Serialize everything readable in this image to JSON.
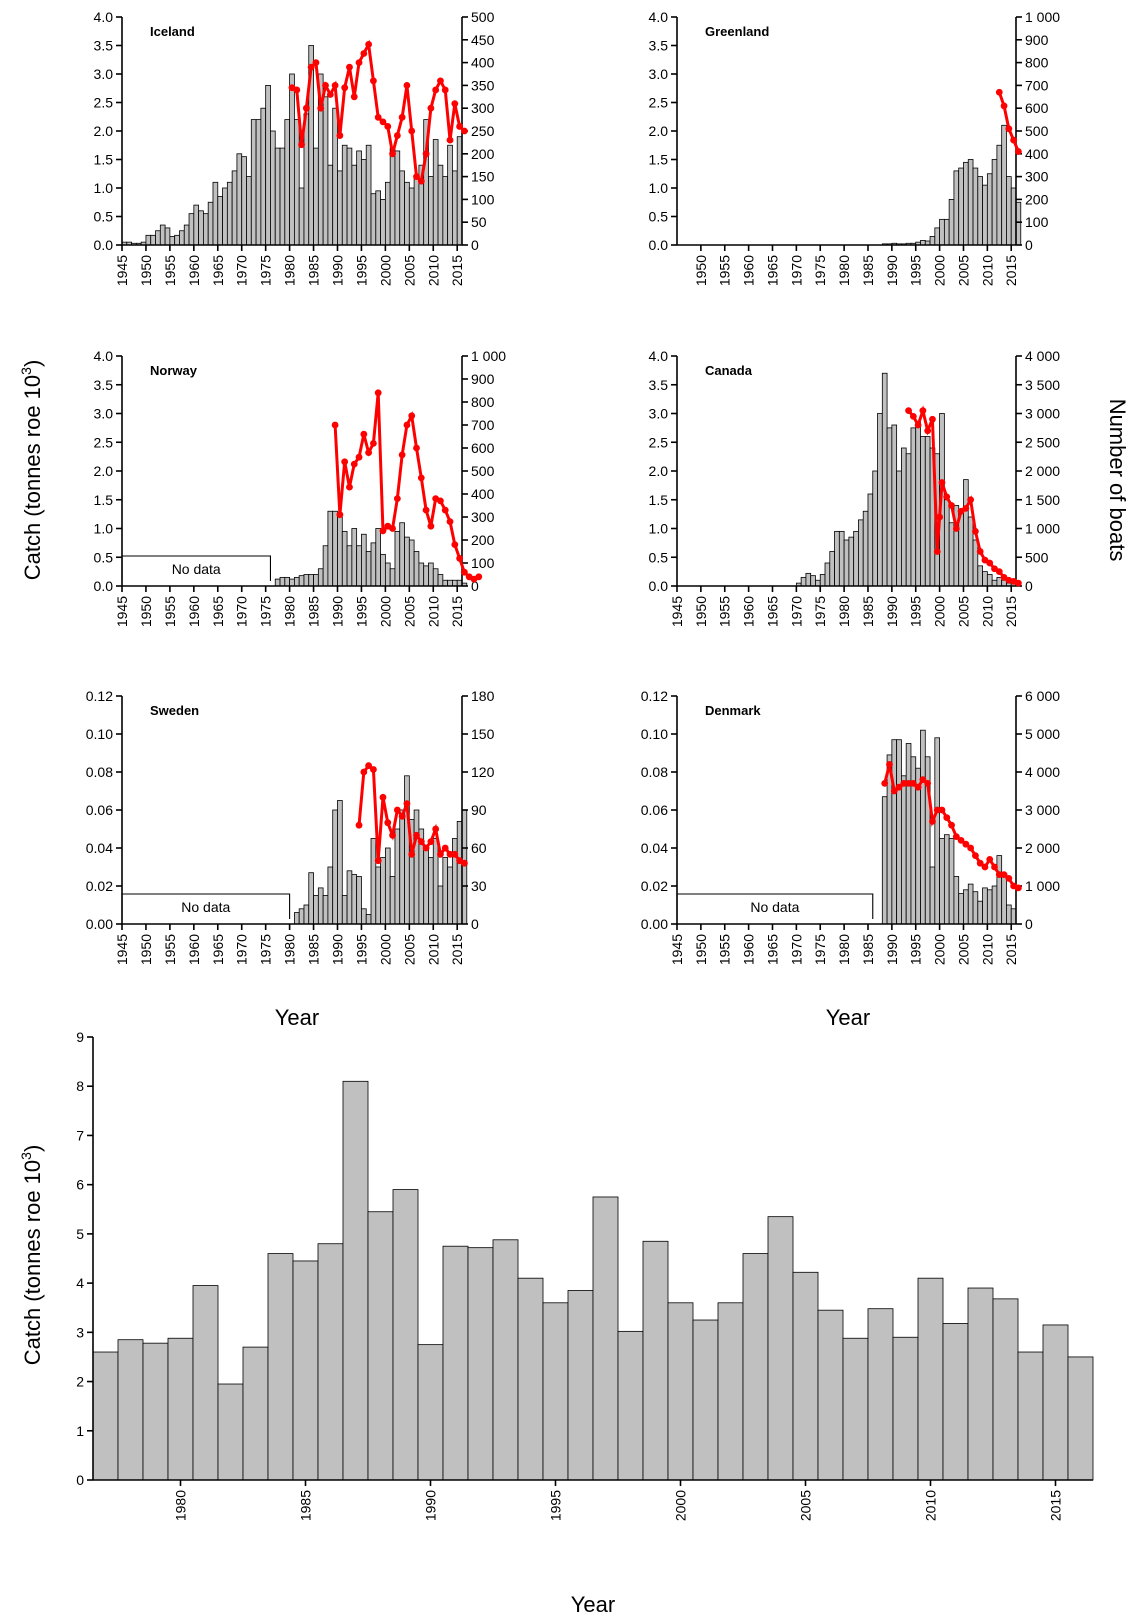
{
  "labels": {
    "catch_axis_title": "Catch (tonnes roe 10",
    "catch_axis_sup": "3",
    "catch_axis_close": ")",
    "boats_axis_title": "Number of boats",
    "year_title": "Year",
    "no_data": "No data"
  },
  "colors": {
    "bar_fill": "#c0c0c0",
    "bar_stroke": "#000000",
    "boats_line": "#ff0000"
  },
  "chart_data": [
    {
      "type": "bar+line",
      "panel": "Iceland",
      "title": "Iceland",
      "xlim": [
        1945,
        2016
      ],
      "xticks": [
        "1945",
        "1950",
        "1955",
        "1960",
        "1965",
        "1970",
        "1975",
        "1980",
        "1985",
        "1990",
        "1995",
        "2000",
        "2005",
        "2010",
        "2015"
      ],
      "ylim": [
        0,
        4.0
      ],
      "yticks": [
        "0.0",
        "0.5",
        "1.0",
        "1.5",
        "2.0",
        "2.5",
        "3.0",
        "3.5",
        "4.0"
      ],
      "y2lim": [
        0,
        500
      ],
      "y2ticks": [
        "0",
        "50",
        "100",
        "150",
        "200",
        "250",
        "300",
        "350",
        "400",
        "450",
        "500"
      ],
      "catch_start_year": 1945,
      "catch": [
        0.05,
        0.05,
        0.03,
        0.03,
        0.05,
        0.17,
        0.17,
        0.25,
        0.35,
        0.3,
        0.15,
        0.17,
        0.25,
        0.35,
        0.55,
        0.7,
        0.6,
        0.55,
        0.75,
        1.1,
        0.85,
        1.0,
        1.1,
        1.3,
        1.6,
        1.55,
        1.2,
        2.2,
        2.2,
        2.4,
        2.8,
        2.0,
        1.7,
        1.7,
        2.2,
        3.0,
        2.2,
        1.0,
        2.3,
        3.5,
        1.7,
        3.0,
        2.6,
        1.4,
        2.4,
        1.3,
        1.75,
        1.7,
        1.4,
        1.65,
        1.5,
        1.75,
        0.9,
        0.95,
        0.8,
        1.1,
        1.7,
        1.65,
        1.3,
        1.1,
        1.0,
        1.2,
        1.4,
        2.2,
        1.2,
        1.85,
        1.4,
        1.2,
        1.75,
        1.3,
        1.9
      ],
      "boats": [
        [
          1980,
          345
        ],
        [
          1981,
          340
        ],
        [
          1982,
          220
        ],
        [
          1983,
          300
        ],
        [
          1984,
          390
        ],
        [
          1985,
          400
        ],
        [
          1986,
          300
        ],
        [
          1987,
          350
        ],
        [
          1988,
          330
        ],
        [
          1989,
          350
        ],
        [
          1990,
          240
        ],
        [
          1991,
          345
        ],
        [
          1992,
          390
        ],
        [
          1993,
          325
        ],
        [
          1994,
          400
        ],
        [
          1995,
          420
        ],
        [
          1996,
          440
        ],
        [
          1997,
          360
        ],
        [
          1998,
          280
        ],
        [
          1999,
          270
        ],
        [
          2000,
          260
        ],
        [
          2001,
          200
        ],
        [
          2002,
          240
        ],
        [
          2003,
          280
        ],
        [
          2004,
          350
        ],
        [
          2005,
          250
        ],
        [
          2006,
          150
        ],
        [
          2007,
          140
        ],
        [
          2008,
          200
        ],
        [
          2009,
          300
        ],
        [
          2010,
          340
        ],
        [
          2011,
          360
        ],
        [
          2012,
          340
        ],
        [
          2013,
          230
        ],
        [
          2014,
          310
        ],
        [
          2015,
          260
        ],
        [
          2016,
          250
        ]
      ],
      "no_data_range": null
    },
    {
      "type": "bar+line",
      "panel": "Greenland",
      "title": "Greenland",
      "xlim": [
        1945,
        2016
      ],
      "xticks": [
        "1950",
        "1955",
        "1960",
        "1965",
        "1970",
        "1975",
        "1980",
        "1985",
        "1990",
        "1995",
        "2000",
        "2005",
        "2010",
        "2015"
      ],
      "ylim": [
        0,
        4.0
      ],
      "yticks": [
        "0.0",
        "0.5",
        "1.0",
        "1.5",
        "2.0",
        "2.5",
        "3.0",
        "3.5",
        "4.0"
      ],
      "y2lim": [
        0,
        1000
      ],
      "y2ticks": [
        "0",
        "100",
        "200",
        "300",
        "400",
        "500",
        "600",
        "700",
        "800",
        "900",
        "1 000"
      ],
      "catch_start_year": 1988,
      "catch": [
        0.02,
        0.02,
        0.03,
        0.02,
        0.02,
        0.03,
        0.03,
        0.05,
        0.08,
        0.07,
        0.15,
        0.3,
        0.45,
        0.45,
        0.8,
        1.3,
        1.35,
        1.45,
        1.5,
        1.35,
        1.2,
        1.05,
        1.25,
        1.5,
        1.75,
        2.1,
        1.2,
        1.0,
        0.75
      ],
      "boats": [
        [
          2012,
          670
        ],
        [
          2013,
          610
        ],
        [
          2014,
          510
        ],
        [
          2015,
          460
        ],
        [
          2016,
          410
        ]
      ],
      "no_data_range": null
    },
    {
      "type": "bar+line",
      "panel": "Norway",
      "title": "Norway",
      "xlim": [
        1945,
        2016
      ],
      "xticks": [
        "1945",
        "1950",
        "1955",
        "1960",
        "1965",
        "1970",
        "1975",
        "1980",
        "1985",
        "1990",
        "1995",
        "2000",
        "2005",
        "2010",
        "2015"
      ],
      "ylim": [
        0,
        4.0
      ],
      "yticks": [
        "0.0",
        "0.5",
        "1.0",
        "1.5",
        "2.0",
        "2.5",
        "3.0",
        "3.5",
        "4.0"
      ],
      "y2lim": [
        0,
        1000
      ],
      "y2ticks": [
        "0",
        "100",
        "200",
        "300",
        "400",
        "500",
        "600",
        "700",
        "800",
        "900",
        "1 000"
      ],
      "catch_start_year": 1977,
      "catch": [
        0.12,
        0.15,
        0.15,
        0.12,
        0.15,
        0.18,
        0.2,
        0.2,
        0.2,
        0.3,
        0.7,
        1.3,
        1.3,
        1.2,
        0.95,
        0.7,
        1.0,
        0.7,
        0.9,
        0.6,
        0.75,
        1.0,
        0.55,
        0.4,
        0.3,
        0.95,
        1.1,
        0.85,
        0.8,
        0.6,
        0.4,
        0.35,
        0.4,
        0.3,
        0.2,
        0.1,
        0.1,
        0.1,
        0.1,
        0.05
      ],
      "boats": [
        [
          1989,
          700
        ],
        [
          1990,
          310
        ],
        [
          1991,
          540
        ],
        [
          1992,
          430
        ],
        [
          1993,
          530
        ],
        [
          1994,
          560
        ],
        [
          1995,
          660
        ],
        [
          1996,
          580
        ],
        [
          1997,
          620
        ],
        [
          1998,
          840
        ],
        [
          1999,
          240
        ],
        [
          2000,
          260
        ],
        [
          2001,
          250
        ],
        [
          2002,
          380
        ],
        [
          2003,
          570
        ],
        [
          2004,
          700
        ],
        [
          2005,
          740
        ],
        [
          2006,
          600
        ],
        [
          2007,
          470
        ],
        [
          2008,
          330
        ],
        [
          2009,
          260
        ],
        [
          2010,
          380
        ],
        [
          2011,
          370
        ],
        [
          2012,
          330
        ],
        [
          2013,
          280
        ],
        [
          2014,
          180
        ],
        [
          2015,
          120
        ],
        [
          2016,
          60
        ],
        [
          2017,
          40
        ],
        [
          2018,
          30
        ],
        [
          2019,
          40
        ]
      ],
      "no_data_range": [
        1945,
        1976
      ]
    },
    {
      "type": "bar+line",
      "panel": "Canada",
      "title": "Canada",
      "xlim": [
        1945,
        2016
      ],
      "xticks": [
        "1945",
        "1950",
        "1955",
        "1960",
        "1965",
        "1970",
        "1975",
        "1980",
        "1985",
        "1990",
        "1995",
        "2000",
        "2005",
        "2010",
        "2015"
      ],
      "ylim": [
        0,
        4.0
      ],
      "yticks": [
        "0.0",
        "0.5",
        "1.0",
        "1.5",
        "2.0",
        "2.5",
        "3.0",
        "3.5",
        "4.0"
      ],
      "y2lim": [
        0,
        4000
      ],
      "y2ticks": [
        "0",
        "500",
        "1 000",
        "1 500",
        "2 000",
        "2 500",
        "3 000",
        "3 500",
        "4 000"
      ],
      "catch_start_year": 1970,
      "catch": [
        0.05,
        0.15,
        0.22,
        0.18,
        0.1,
        0.2,
        0.4,
        0.6,
        0.95,
        0.95,
        0.8,
        0.85,
        0.95,
        1.15,
        1.3,
        1.6,
        2.0,
        3.0,
        3.7,
        2.75,
        2.8,
        2.0,
        2.4,
        2.3,
        2.75,
        2.85,
        2.6,
        2.6,
        2.4,
        2.3,
        3.0,
        1.5,
        1.1,
        1.4,
        1.3,
        1.85,
        1.2,
        0.8,
        0.35,
        0.25,
        0.2,
        0.1,
        0.15,
        0.1,
        0.05,
        0.05
      ],
      "boats": [
        [
          1993,
          3050
        ],
        [
          1994,
          2950
        ],
        [
          1995,
          2800
        ],
        [
          1996,
          3050
        ],
        [
          1997,
          2700
        ],
        [
          1998,
          2900
        ],
        [
          1999,
          600
        ],
        [
          1999.5,
          1200
        ],
        [
          2000,
          1800
        ],
        [
          2001,
          1550
        ],
        [
          2002,
          1400
        ],
        [
          2003,
          1000
        ],
        [
          2004,
          1300
        ],
        [
          2005,
          1350
        ],
        [
          2006,
          1500
        ],
        [
          2007,
          950
        ],
        [
          2008,
          600
        ],
        [
          2009,
          450
        ],
        [
          2010,
          400
        ],
        [
          2011,
          300
        ],
        [
          2012,
          250
        ],
        [
          2013,
          150
        ],
        [
          2014,
          100
        ],
        [
          2015,
          80
        ],
        [
          2016,
          50
        ]
      ],
      "no_data_range": null
    },
    {
      "type": "bar+line",
      "panel": "Sweden",
      "title": "Sweden",
      "xlim": [
        1945,
        2016
      ],
      "xticks": [
        "1945",
        "1950",
        "1955",
        "1960",
        "1965",
        "1970",
        "1975",
        "1980",
        "1985",
        "1990",
        "1995",
        "2000",
        "2005",
        "2010",
        "2015"
      ],
      "ylim": [
        0,
        0.12
      ],
      "yticks": [
        "0.00",
        "0.02",
        "0.04",
        "0.06",
        "0.08",
        "0.10",
        "0.12"
      ],
      "y2lim": [
        0,
        180
      ],
      "y2ticks": [
        "0",
        "30",
        "60",
        "90",
        "120",
        "150",
        "180"
      ],
      "catch_start_year": 1981,
      "catch": [
        0.006,
        0.008,
        0.01,
        0.027,
        0.015,
        0.019,
        0.015,
        0.03,
        0.06,
        0.065,
        0.015,
        0.028,
        0.026,
        0.025,
        0.008,
        0.005,
        0.045,
        0.03,
        0.035,
        0.04,
        0.025,
        0.05,
        0.06,
        0.078,
        0.055,
        0.06,
        0.05,
        0.04,
        0.035,
        0.045,
        0.02,
        0.035,
        0.03,
        0.045,
        0.054,
        0.06
      ],
      "boats": [
        [
          1994,
          78
        ],
        [
          1995,
          120
        ],
        [
          1996,
          125
        ],
        [
          1997,
          122
        ],
        [
          1998,
          50
        ],
        [
          1999,
          100
        ],
        [
          2000,
          80
        ],
        [
          2001,
          70
        ],
        [
          2002,
          90
        ],
        [
          2003,
          85
        ],
        [
          2004,
          95
        ],
        [
          2005,
          55
        ],
        [
          2006,
          70
        ],
        [
          2007,
          65
        ],
        [
          2008,
          60
        ],
        [
          2009,
          65
        ],
        [
          2010,
          75
        ],
        [
          2011,
          55
        ],
        [
          2012,
          60
        ],
        [
          2013,
          55
        ],
        [
          2014,
          55
        ],
        [
          2015,
          50
        ],
        [
          2016,
          48
        ]
      ],
      "no_data_range": [
        1945,
        1980
      ]
    },
    {
      "type": "bar+line",
      "panel": "Denmark",
      "title": "Denmark",
      "xlim": [
        1945,
        2016
      ],
      "xticks": [
        "1945",
        "1950",
        "1955",
        "1960",
        "1965",
        "1970",
        "1975",
        "1980",
        "1985",
        "1990",
        "1995",
        "2000",
        "2005",
        "2010",
        "2015"
      ],
      "ylim": [
        0,
        0.12
      ],
      "yticks": [
        "0.00",
        "0.02",
        "0.04",
        "0.06",
        "0.08",
        "0.10",
        "0.12"
      ],
      "y2lim": [
        0,
        6000
      ],
      "y2ticks": [
        "0",
        "1 000",
        "2 000",
        "3 000",
        "4 000",
        "5 000",
        "6 000"
      ],
      "catch_start_year": 1988,
      "catch": [
        0.067,
        0.089,
        0.097,
        0.097,
        0.078,
        0.095,
        0.088,
        0.082,
        0.102,
        0.088,
        0.03,
        0.098,
        0.045,
        0.047,
        0.045,
        0.025,
        0.016,
        0.018,
        0.021,
        0.017,
        0.012,
        0.019,
        0.018,
        0.02,
        0.036,
        0.025,
        0.01,
        0.008
      ],
      "boats": [
        [
          1988,
          3700
        ],
        [
          1989,
          4200
        ],
        [
          1990,
          3500
        ],
        [
          1991,
          3600
        ],
        [
          1992,
          3700
        ],
        [
          1993,
          3700
        ],
        [
          1994,
          3700
        ],
        [
          1995,
          3600
        ],
        [
          1996,
          3800
        ],
        [
          1997,
          3700
        ],
        [
          1998,
          2700
        ],
        [
          1999,
          3000
        ],
        [
          2000,
          3000
        ],
        [
          2001,
          2800
        ],
        [
          2002,
          2600
        ],
        [
          2003,
          2300
        ],
        [
          2004,
          2200
        ],
        [
          2005,
          2100
        ],
        [
          2006,
          2000
        ],
        [
          2007,
          1800
        ],
        [
          2008,
          1600
        ],
        [
          2009,
          1500
        ],
        [
          2010,
          1700
        ],
        [
          2011,
          1500
        ],
        [
          2012,
          1300
        ],
        [
          2013,
          1300
        ],
        [
          2014,
          1200
        ],
        [
          2015,
          1000
        ],
        [
          2016,
          950
        ]
      ],
      "no_data_range": [
        1945,
        1986
      ]
    },
    {
      "type": "bar",
      "panel": "Total",
      "title": "",
      "xlim": [
        1976.5,
        2016.5
      ],
      "xticks": [
        "1980",
        "1985",
        "1990",
        "1995",
        "2000",
        "2005",
        "2010",
        "2015"
      ],
      "ylim": [
        0,
        9
      ],
      "yticks": [
        "0",
        "1",
        "2",
        "3",
        "4",
        "5",
        "6",
        "7",
        "8",
        "9"
      ],
      "catch_start_year": 1977,
      "catch": [
        2.6,
        2.85,
        2.78,
        2.88,
        3.95,
        1.95,
        2.7,
        4.6,
        4.45,
        4.8,
        8.1,
        5.45,
        5.9,
        2.75,
        4.75,
        4.72,
        4.88,
        4.1,
        3.6,
        3.85,
        5.75,
        3.02,
        4.85,
        3.6,
        3.25,
        3.6,
        4.6,
        5.35,
        4.22,
        3.45,
        2.88,
        3.48,
        2.9,
        4.1,
        3.18,
        3.9,
        3.68,
        2.6,
        3.15,
        2.5
      ]
    }
  ]
}
